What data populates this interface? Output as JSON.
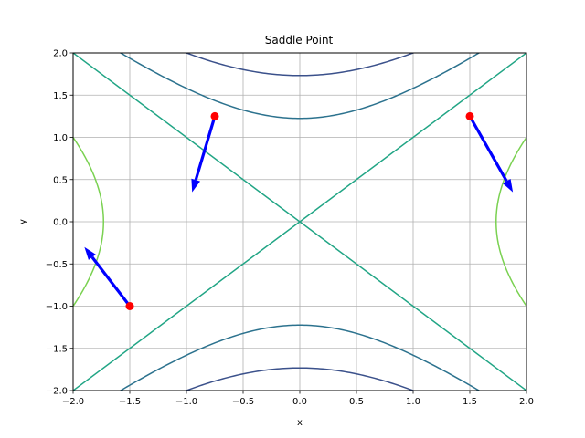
{
  "chart_data": {
    "type": "contour",
    "title": "Saddle Point",
    "xlabel": "x",
    "ylabel": "y",
    "xlim": [
      -2.0,
      2.0
    ],
    "ylim": [
      -2.0,
      2.0
    ],
    "grid": true,
    "x_ticks": [
      "−2.0",
      "−1.5",
      "−1.0",
      "−0.5",
      "0.0",
      "0.5",
      "1.0",
      "1.5",
      "2.0"
    ],
    "y_ticks": [
      "−2.0",
      "−1.5",
      "−1.0",
      "−0.5",
      "0.0",
      "0.5",
      "1.0",
      "1.5",
      "2.0"
    ],
    "function": "x^2 - y^2",
    "contour_levels": [
      {
        "level": -3,
        "color": "#3b518b"
      },
      {
        "level": -1.5,
        "color": "#2c728e"
      },
      {
        "level": 0,
        "color": "#21a585"
      },
      {
        "level": 3,
        "color": "#7ad151"
      }
    ],
    "points": [
      {
        "x": -1.5,
        "y": -1.0
      },
      {
        "x": -0.75,
        "y": 1.25
      },
      {
        "x": 1.5,
        "y": 1.25
      }
    ],
    "point_color": "#ff0000",
    "arrows": [
      {
        "x": -1.5,
        "y": -1.0,
        "dx": -0.4,
        "dy": 0.7
      },
      {
        "x": -0.75,
        "y": 1.25,
        "dx": -0.2,
        "dy": -0.9
      },
      {
        "x": 1.5,
        "y": 1.25,
        "dx": 0.38,
        "dy": -0.9
      }
    ],
    "arrow_color": "#0000ff"
  }
}
